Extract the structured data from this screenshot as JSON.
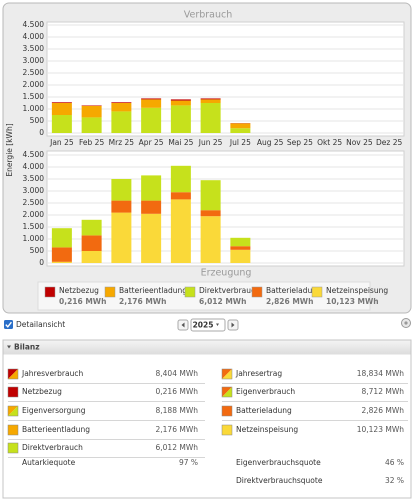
{
  "chart_data": [
    {
      "type": "bar",
      "stacked": true,
      "title": "Verbrauch",
      "y_label": "Energie [kWh]",
      "categories": [
        "Jan 25",
        "Feb 25",
        "Mrz 25",
        "Apr 25",
        "Mai 25",
        "Jun 25",
        "Jul 25",
        "Aug 25",
        "Sep 25",
        "Okt 25",
        "Nov 25",
        "Dez 25"
      ],
      "ylim": [
        0,
        4500
      ],
      "yticks": [
        0,
        500,
        {
          "value": 1000,
          "label": "1.000"
        },
        {
          "value": 1500,
          "label": "1.500"
        },
        {
          "value": 2000,
          "label": "2.000"
        },
        {
          "value": 2500,
          "label": "2.500"
        },
        {
          "value": 3000,
          "label": "3.000"
        },
        {
          "value": 3500,
          "label": "3.500"
        },
        {
          "value": 4000,
          "label": "4.000"
        },
        {
          "value": 4500,
          "label": "4.500"
        }
      ],
      "grid": true,
      "series": [
        {
          "name": "Direktverbrauch",
          "color": "#c6e11c",
          "values": [
            750,
            650,
            900,
            1050,
            1150,
            1250,
            200,
            null,
            null,
            null,
            null,
            null
          ]
        },
        {
          "name": "Batterieentladung",
          "color": "#f6a800",
          "values": [
            500,
            480,
            350,
            350,
            200,
            150,
            200,
            null,
            null,
            null,
            null,
            null
          ]
        },
        {
          "name": "Netzbezug",
          "color": "#c00000",
          "values": [
            30,
            20,
            30,
            40,
            50,
            40,
            10,
            null,
            null,
            null,
            null,
            null
          ]
        }
      ]
    },
    {
      "type": "bar",
      "stacked": true,
      "title": "Erzeugung",
      "ylim": [
        0,
        4500
      ],
      "yticks": [
        0,
        500,
        {
          "value": 1000,
          "label": "1.000"
        },
        {
          "value": 1500,
          "label": "1.500"
        },
        {
          "value": 2000,
          "label": "2.000"
        },
        {
          "value": 2500,
          "label": "2.500"
        },
        {
          "value": 3000,
          "label": "3.000"
        },
        {
          "value": 3500,
          "label": "3.500"
        },
        {
          "value": 4000,
          "label": "4.000"
        },
        {
          "value": 4500,
          "label": "4.500"
        }
      ],
      "grid": true,
      "series": [
        {
          "name": "Netzeinspeisung",
          "color": "#fad939",
          "values": [
            50,
            500,
            2100,
            2050,
            2650,
            1950,
            550,
            null,
            null,
            null,
            null,
            null
          ]
        },
        {
          "name": "Batterieladung",
          "color": "#f26a10",
          "values": [
            600,
            650,
            500,
            550,
            300,
            250,
            150,
            null,
            null,
            null,
            null,
            null
          ]
        },
        {
          "name": "Direktverbrauch",
          "color": "#c6e11c",
          "values": [
            800,
            650,
            900,
            1050,
            1100,
            1250,
            350,
            null,
            null,
            null,
            null,
            null
          ]
        }
      ]
    }
  ],
  "legend_values": [
    "0,216 MWh",
    "2,176 MWh",
    "6,012 MWh",
    "2,826 MWh",
    "10,123 MWh"
  ],
  "controls": {
    "detail": "Detailansicht",
    "year": "2025"
  },
  "bilanz": {
    "title": "Bilanz",
    "left": [
      {
        "label": "Jahresverbrauch",
        "value": "8,404 MWh"
      },
      {
        "label": "Netzbezug",
        "value": "0,216 MWh"
      },
      {
        "label": "Eigenversorgung",
        "value": "8,188 MWh"
      },
      {
        "label": "Batterieentladung",
        "value": "2,176 MWh"
      },
      {
        "label": "Direktverbrauch",
        "value": "6,012 MWh"
      },
      {
        "label": "Autarkiequote",
        "value": "97 %"
      }
    ],
    "right": [
      {
        "label": "Jahresertrag",
        "value": "18,834 MWh"
      },
      {
        "label": "Eigenverbrauch",
        "value": "8,712 MWh"
      },
      {
        "label": "Batterieladung",
        "value": "2,826 MWh"
      },
      {
        "label": "Netzeinspeisung",
        "value": "10,123 MWh"
      },
      {
        "label": "Eigenverbrauchsquote",
        "value": "46 %"
      },
      {
        "label": "Direktverbrauchsquote",
        "value": "32 %"
      }
    ]
  }
}
